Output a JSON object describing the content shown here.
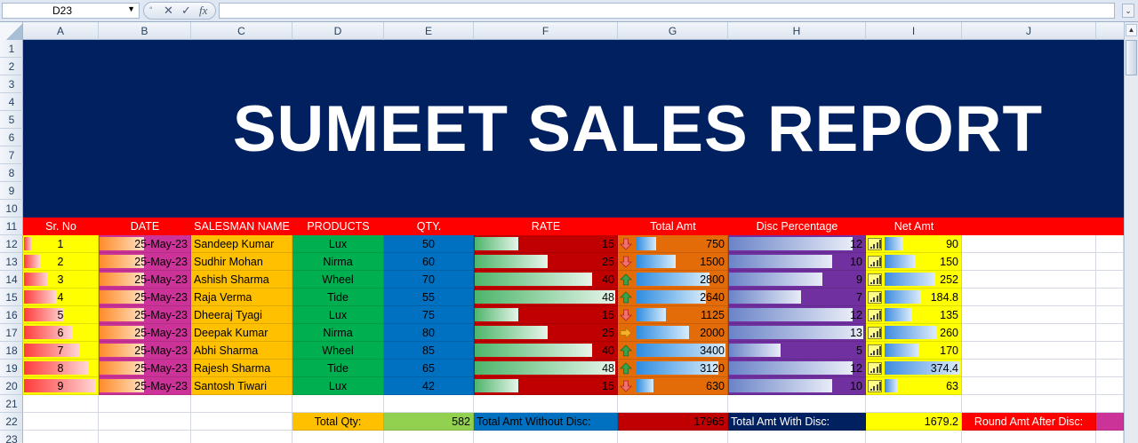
{
  "formula_bar": {
    "name_box": "D23",
    "cancel_symbol": "✕",
    "enter_symbol": "✓",
    "fx_symbol": "fx",
    "formula": ""
  },
  "columns": [
    "A",
    "B",
    "C",
    "D",
    "E",
    "F",
    "G",
    "H",
    "I",
    "J"
  ],
  "rows": [
    "1",
    "2",
    "3",
    "4",
    "5",
    "6",
    "7",
    "8",
    "9",
    "10",
    "11",
    "12",
    "13",
    "14",
    "15",
    "16",
    "17",
    "18",
    "19",
    "20",
    "21",
    "22",
    "23"
  ],
  "title": "SUMEET SALES REPORT",
  "headers": [
    "Sr. No",
    "DATE",
    "SALESMAN NAME",
    "PRODUCTS",
    "QTY.",
    "RATE",
    "Total Amt",
    "Disc Percentage",
    "Net Amt"
  ],
  "records": [
    {
      "sr": "1",
      "date": "25-May-23",
      "name": "Sandeep Kumar",
      "product": "Lux",
      "qty": "50",
      "rate": "15",
      "total": "750",
      "disc": "12",
      "net": "90",
      "total_trend": "down"
    },
    {
      "sr": "2",
      "date": "25-May-23",
      "name": "Sudhir Mohan",
      "product": "Nirma",
      "qty": "60",
      "rate": "25",
      "total": "1500",
      "disc": "10",
      "net": "150",
      "total_trend": "down"
    },
    {
      "sr": "3",
      "date": "25-May-23",
      "name": "Ashish Sharma",
      "product": "Wheel",
      "qty": "70",
      "rate": "40",
      "total": "2800",
      "disc": "9",
      "net": "252",
      "total_trend": "up"
    },
    {
      "sr": "4",
      "date": "25-May-23",
      "name": "Raja Verma",
      "product": "Tide",
      "qty": "55",
      "rate": "48",
      "total": "2640",
      "disc": "7",
      "net": "184.8",
      "total_trend": "up"
    },
    {
      "sr": "5",
      "date": "25-May-23",
      "name": "Dheeraj Tyagi",
      "product": "Lux",
      "qty": "75",
      "rate": "15",
      "total": "1125",
      "disc": "12",
      "net": "135",
      "total_trend": "down"
    },
    {
      "sr": "6",
      "date": "25-May-23",
      "name": "Deepak Kumar",
      "product": "Nirma",
      "qty": "80",
      "rate": "25",
      "total": "2000",
      "disc": "13",
      "net": "260",
      "total_trend": "flat"
    },
    {
      "sr": "7",
      "date": "25-May-23",
      "name": "Abhi Sharma",
      "product": "Wheel",
      "qty": "85",
      "rate": "40",
      "total": "3400",
      "disc": "5",
      "net": "170",
      "total_trend": "up"
    },
    {
      "sr": "8",
      "date": "25-May-23",
      "name": "Rajesh Sharma",
      "product": "Tide",
      "qty": "65",
      "rate": "48",
      "total": "3120",
      "disc": "12",
      "net": "374.4",
      "total_trend": "up"
    },
    {
      "sr": "9",
      "date": "25-May-23",
      "name": "Santosh Tiwari",
      "product": "Lux",
      "qty": "42",
      "rate": "15",
      "total": "630",
      "disc": "10",
      "net": "63",
      "total_trend": "down"
    }
  ],
  "totals": {
    "qty_label": "Total Qty:",
    "qty_value": "582",
    "amt_without_label": "Total Amt Without Disc:",
    "amt_without_value": "17965",
    "amt_with_label": "Total Amt With Disc:",
    "amt_with_value": "1679.2",
    "round_label": "Round Amt After Disc:"
  },
  "colors": {
    "banner": "#002060",
    "header_row": "#ff0000",
    "sr": "#ffff00",
    "date": "#cc3399",
    "name": "#ffc000",
    "product": "#00b050",
    "qty": "#0070c0",
    "rate": "#c00000",
    "total": "#e36c09",
    "disc": "#7030a0",
    "net": "#ffff00"
  }
}
